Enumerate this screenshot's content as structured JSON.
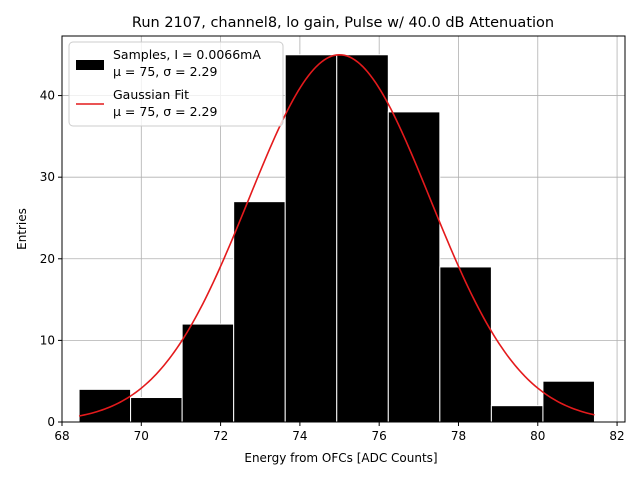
{
  "chart_data": {
    "type": "bar",
    "title": "Run 2107, channel8, lo gain, Pulse w/ 40.0 dB Attenuation",
    "xlabel": "Energy from OFCs [ADC Counts]",
    "ylabel": "Entries",
    "xlim": [
      68.0,
      82.2
    ],
    "ylim": [
      0,
      47.3
    ],
    "xticks": [
      68,
      70,
      72,
      74,
      76,
      78,
      80,
      82
    ],
    "yticks": [
      0,
      10,
      20,
      30,
      40
    ],
    "grid": true,
    "histogram": {
      "name": "Samples",
      "bin_edges": [
        68.43,
        69.73,
        71.03,
        72.33,
        73.63,
        74.93,
        76.23,
        77.53,
        78.83,
        80.13,
        81.43
      ],
      "counts": [
        4,
        3,
        12,
        27,
        45,
        45,
        38,
        19,
        2,
        5
      ],
      "color": "#000000",
      "edgecolor": "#ffffff"
    },
    "fit": {
      "name": "Gaussian Fit",
      "type": "gaussian",
      "mu": 75,
      "sigma": 2.29,
      "amplitude": 45,
      "x_range": [
        68.43,
        81.43
      ],
      "color": "#e41a1c"
    },
    "legend": {
      "position": "top-left",
      "entries": [
        {
          "line1": "Samples, I = 0.0066mA",
          "line2": "μ = 75, σ = 2.29"
        },
        {
          "line1": "Gaussian Fit",
          "line2": "μ = 75, σ = 2.29"
        }
      ]
    }
  }
}
